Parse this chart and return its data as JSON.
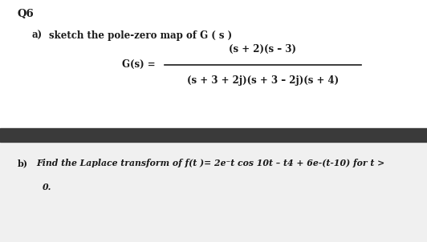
{
  "title": "Q6",
  "part_a_label": "a)",
  "part_a_text": "sketch the pole-zero map of G ( s )",
  "gs_left": "G(s) =",
  "numerator": "(s + 2)(s – 3)",
  "denominator": "(s + 3 + 2j)(s + 3 – 2j)(s + 4)",
  "part_b_label": "b)",
  "part_b_text": "Find the Laplace transform of f(t )= 2e⁻t cos 10t – t4 + 6e-(t-10) for t >",
  "part_b_line2": "0.",
  "divider_color": "#3a3a3a",
  "bg_top_color": "#ffffff",
  "bg_bottom_color": "#ffffff",
  "text_color": "#1a1a1a",
  "fig_width": 5.32,
  "fig_height": 3.02,
  "dpi": 100
}
